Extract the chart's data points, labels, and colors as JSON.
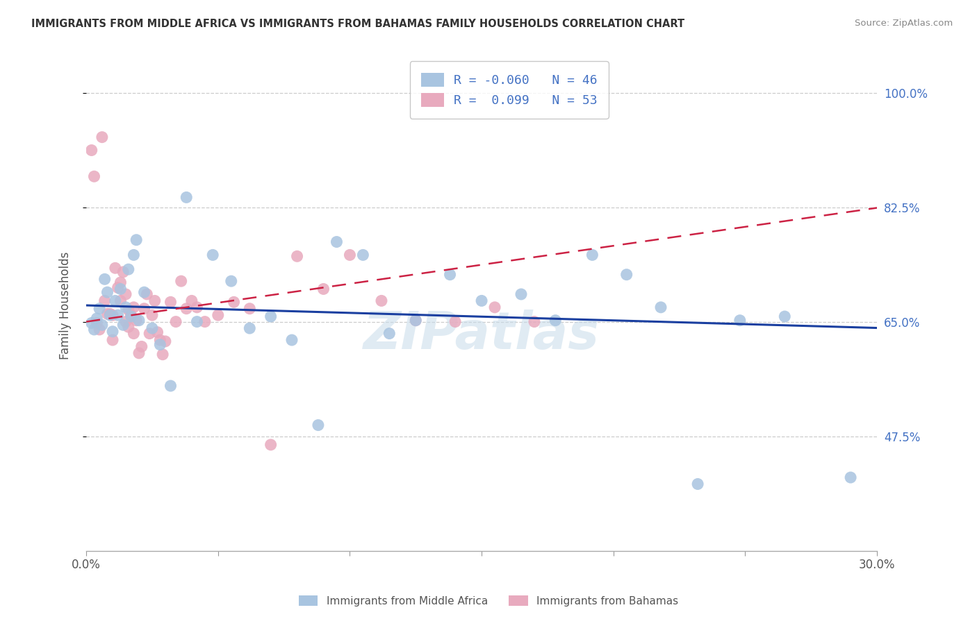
{
  "title": "IMMIGRANTS FROM MIDDLE AFRICA VS IMMIGRANTS FROM BAHAMAS FAMILY HOUSEHOLDS CORRELATION CHART",
  "source": "Source: ZipAtlas.com",
  "ylabel": "Family Households",
  "ylabel_ticks": [
    "100.0%",
    "82.5%",
    "65.0%",
    "47.5%"
  ],
  "ylabel_values": [
    1.0,
    0.825,
    0.65,
    0.475
  ],
  "legend_label1": "Immigrants from Middle Africa",
  "legend_label2": "Immigrants from Bahamas",
  "R1": "-0.060",
  "N1": "46",
  "R2": "0.099",
  "N2": "53",
  "color_blue": "#a8c4e0",
  "color_pink": "#e8aabe",
  "line_blue": "#1a3fa0",
  "line_pink": "#cc2244",
  "watermark": "ZIPatlas",
  "xmin": 0.0,
  "xmax": 0.3,
  "ymin": 0.3,
  "ymax": 1.05,
  "blue_x": [
    0.002,
    0.003,
    0.004,
    0.005,
    0.006,
    0.007,
    0.008,
    0.009,
    0.01,
    0.011,
    0.012,
    0.013,
    0.014,
    0.015,
    0.016,
    0.017,
    0.018,
    0.019,
    0.02,
    0.022,
    0.025,
    0.028,
    0.032,
    0.038,
    0.042,
    0.048,
    0.055,
    0.062,
    0.07,
    0.078,
    0.088,
    0.095,
    0.105,
    0.115,
    0.125,
    0.138,
    0.15,
    0.165,
    0.178,
    0.192,
    0.205,
    0.218,
    0.232,
    0.248,
    0.265,
    0.29
  ],
  "blue_y": [
    0.648,
    0.638,
    0.655,
    0.67,
    0.645,
    0.715,
    0.695,
    0.66,
    0.635,
    0.682,
    0.66,
    0.7,
    0.645,
    0.672,
    0.73,
    0.658,
    0.752,
    0.775,
    0.652,
    0.695,
    0.64,
    0.615,
    0.552,
    0.84,
    0.65,
    0.752,
    0.712,
    0.64,
    0.658,
    0.622,
    0.492,
    0.772,
    0.752,
    0.632,
    0.652,
    0.722,
    0.682,
    0.692,
    0.652,
    0.752,
    0.722,
    0.672,
    0.402,
    0.652,
    0.658,
    0.412
  ],
  "pink_x": [
    0.002,
    0.003,
    0.004,
    0.005,
    0.006,
    0.007,
    0.008,
    0.009,
    0.01,
    0.01,
    0.011,
    0.012,
    0.013,
    0.013,
    0.014,
    0.015,
    0.015,
    0.016,
    0.016,
    0.017,
    0.018,
    0.018,
    0.019,
    0.02,
    0.021,
    0.022,
    0.023,
    0.024,
    0.025,
    0.026,
    0.027,
    0.028,
    0.029,
    0.03,
    0.032,
    0.034,
    0.036,
    0.038,
    0.04,
    0.042,
    0.045,
    0.05,
    0.056,
    0.062,
    0.07,
    0.08,
    0.09,
    0.1,
    0.112,
    0.125,
    0.14,
    0.155,
    0.17
  ],
  "pink_y": [
    0.912,
    0.872,
    0.648,
    0.638,
    0.932,
    0.682,
    0.662,
    0.662,
    0.66,
    0.622,
    0.732,
    0.702,
    0.71,
    0.682,
    0.726,
    0.65,
    0.692,
    0.642,
    0.668,
    0.66,
    0.672,
    0.632,
    0.652,
    0.602,
    0.612,
    0.67,
    0.692,
    0.632,
    0.66,
    0.682,
    0.634,
    0.622,
    0.6,
    0.62,
    0.68,
    0.65,
    0.712,
    0.67,
    0.682,
    0.672,
    0.65,
    0.66,
    0.68,
    0.67,
    0.462,
    0.75,
    0.7,
    0.752,
    0.682,
    0.652,
    0.65,
    0.672,
    0.65
  ]
}
